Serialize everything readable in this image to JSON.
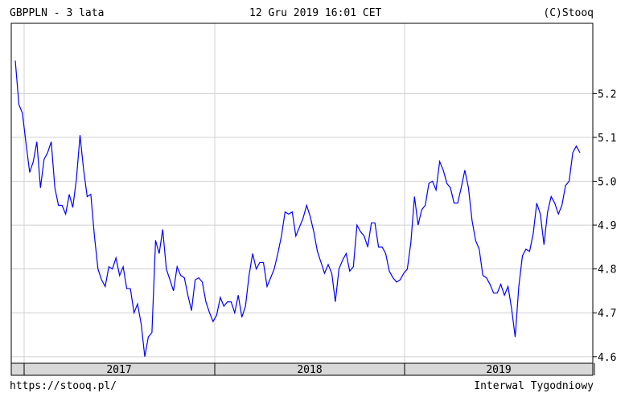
{
  "header": {
    "title": "GBPPLN - 3 lata",
    "datetime": "12 Gru 2019 16:01 CET",
    "copyright": "(C)Stooq"
  },
  "footer": {
    "url": "https://stooq.pl/",
    "interval": "Interwal Tygodniowy"
  },
  "colors": {
    "line": "#0000ff",
    "grid": "#d0d0d0",
    "axis": "#000000",
    "band": "#d8d8d8"
  },
  "chart_data": {
    "type": "line",
    "title": "GBPPLN - 3 lata",
    "xlabel": "",
    "ylabel": "",
    "ylim": [
      4.585,
      5.36
    ],
    "y_ticks": [
      4.6,
      4.7,
      4.8,
      4.9,
      5.0,
      5.1,
      5.2
    ],
    "y_tick_labels": [
      "4.6",
      "4.7",
      "4.8",
      "4.9",
      "5.0",
      "5.1",
      "5.2"
    ],
    "x_labels": [
      "2017",
      "2018",
      "2019"
    ],
    "grid": true,
    "series": [
      {
        "values": [
          5.275,
          5.175,
          5.155,
          5.085,
          5.02,
          5.045,
          5.09,
          4.985,
          5.05,
          5.065,
          5.09,
          4.985,
          4.945,
          4.945,
          4.925,
          4.97,
          4.94,
          5.005,
          5.105,
          5.025,
          4.965,
          4.97,
          4.875,
          4.8,
          4.775,
          4.76,
          4.805,
          4.8,
          4.825,
          4.785,
          4.805,
          4.755,
          4.755,
          4.7,
          4.72,
          4.675,
          4.6,
          4.645,
          4.655,
          4.865,
          4.835,
          4.89,
          4.8,
          4.775,
          4.75,
          4.805,
          4.785,
          4.78,
          4.74,
          4.705,
          4.775,
          4.78,
          4.77,
          4.725,
          4.7,
          4.68,
          4.695,
          4.735,
          4.715,
          4.725,
          4.725,
          4.7,
          4.74,
          4.69,
          4.715,
          4.785,
          4.835,
          4.8,
          4.815,
          4.815,
          4.76,
          4.78,
          4.8,
          4.835,
          4.875,
          4.93,
          4.925,
          4.93,
          4.875,
          4.895,
          4.915,
          4.945,
          4.92,
          4.885,
          4.84,
          4.815,
          4.79,
          4.81,
          4.79,
          4.725,
          4.8,
          4.82,
          4.835,
          4.795,
          4.805,
          4.9,
          4.885,
          4.875,
          4.85,
          4.905,
          4.905,
          4.85,
          4.85,
          4.835,
          4.795,
          4.78,
          4.77,
          4.775,
          4.79,
          4.8,
          4.86,
          4.965,
          4.9,
          4.935,
          4.945,
          4.995,
          5.0,
          4.98,
          5.045,
          5.025,
          4.995,
          4.985,
          4.95,
          4.95,
          4.985,
          5.025,
          4.985,
          4.91,
          4.865,
          4.845,
          4.785,
          4.78,
          4.765,
          4.745,
          4.745,
          4.765,
          4.74,
          4.76,
          4.71,
          4.645,
          4.76,
          4.83,
          4.845,
          4.84,
          4.88,
          4.95,
          4.925,
          4.855,
          4.93,
          4.965,
          4.95,
          4.925,
          4.945,
          4.99,
          5.0,
          5.065,
          5.08,
          5.065
        ]
      }
    ]
  }
}
